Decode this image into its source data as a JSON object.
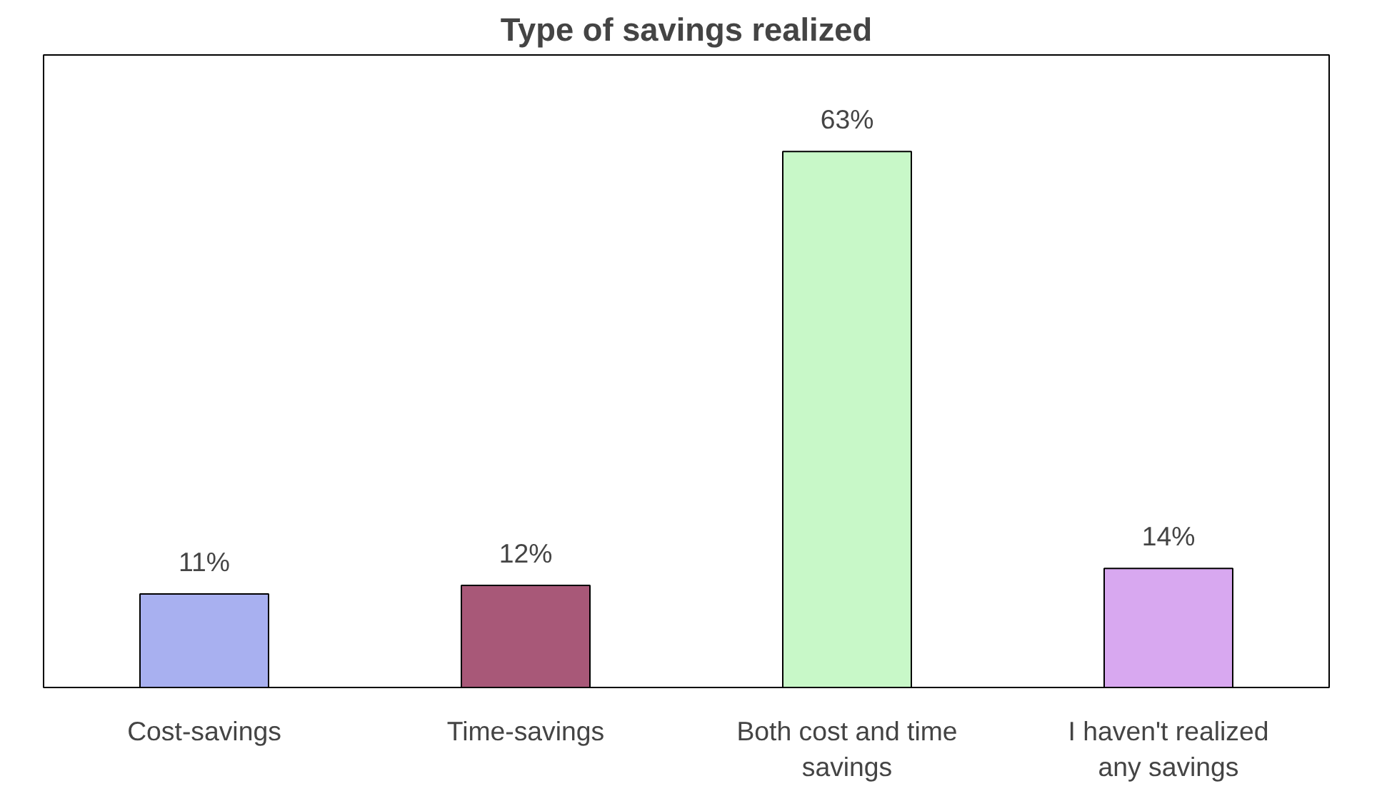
{
  "chart_data": {
    "type": "bar",
    "title": "Type of savings realized",
    "categories": [
      "Cost-savings",
      "Time-savings",
      "Both cost and time savings",
      "I haven't realized any savings"
    ],
    "values": [
      11,
      12,
      63,
      14
    ],
    "colors": [
      "#a8b0f0",
      "#a85878",
      "#c8f8c8",
      "#d8a8f0"
    ],
    "value_labels": [
      "11%",
      "12%",
      "63%",
      "14%"
    ],
    "grid": false
  }
}
